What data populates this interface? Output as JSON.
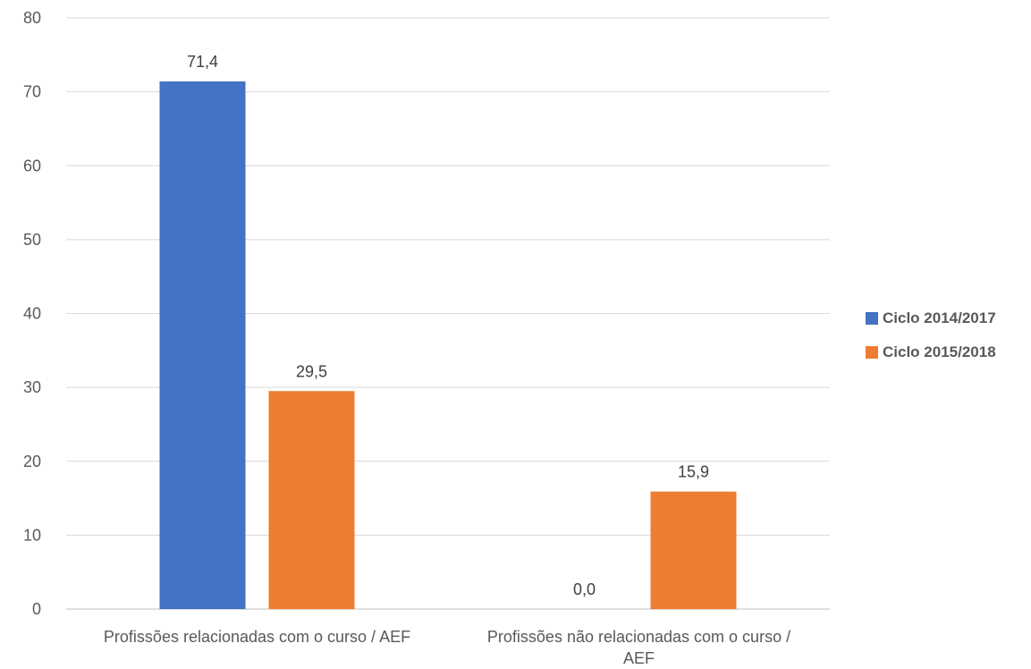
{
  "chart_data": {
    "type": "bar",
    "categories": [
      [
        "Profissões relacionadas com o curso / AEF"
      ],
      [
        "Profissões não relacionadas com o curso /",
        "AEF"
      ]
    ],
    "series": [
      {
        "name": "Ciclo 2014/2017",
        "color": "#4472C4",
        "values": [
          71.4,
          0.0
        ],
        "labels": [
          "71,4",
          "0,0"
        ]
      },
      {
        "name": "Ciclo 2015/2018",
        "color": "#ED7D31",
        "values": [
          29.5,
          15.9
        ],
        "labels": [
          "29,5",
          "15,9"
        ]
      }
    ],
    "yticks": [
      0,
      10,
      20,
      30,
      40,
      50,
      60,
      70,
      80
    ],
    "ylim": [
      0,
      80
    ],
    "grid": true,
    "legend_position": "right"
  }
}
